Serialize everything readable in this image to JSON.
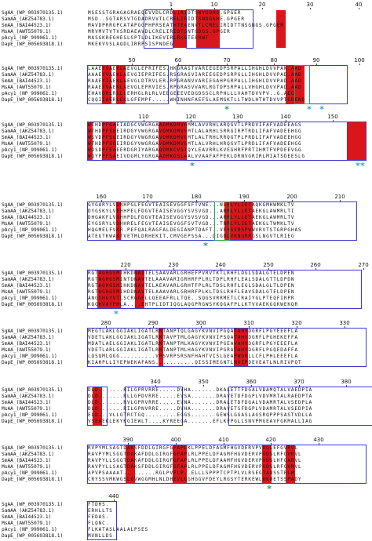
{
  "colors": {
    "identical_bg": "#d9161b",
    "similar_text": "#d9161b",
    "frame": "#3a3acf",
    "green_marker": "#2aa45a",
    "cyan_marker": "#28a9d9",
    "text": "#111111"
  },
  "marker_symbol": "*",
  "blocks": [
    {
      "ruler": [
        "1",
        "10",
        "20",
        "30",
        "40"
      ],
      "rows": [
        {
          "label": "SgAA_(WP_003970135.1)",
          "seq": "MSESSTGRAGAGRAEQEVVDLCRDLIRIDTSNYGDHS.GPGER"
        },
        {
          "label": "SamAA_(AKZ54783.1)",
          "seq": "MSD..SGTARSVTGDADRVVTLCRELIRIDTSNDGSHE.GPGER"
        },
        {
          "label": "SmAA_(BAI44523.1)",
          "seq": "MAVDPRRGPCATAPGGPHPRSEATHTEAENVTLCRELIRIDTTNSGNGS.GPGER"
        },
        {
          "label": "MsAA_(AWT55079.1)",
          "seq": "MRVMVTVTVSRDAEAVDLCRELIRIDTSNTGDGS.GPGER"
        },
        {
          "label": "pAcy1_(NP_999061.1)",
          "seq": "MASGKREGHESLSPTLDLIKEVIRLRKGTEERWT"
        },
        {
          "label": "DapE_(WP_005693818.1)",
          "seq": "MKEKVVSLAQDLIRRPSISPNDEG"
        }
      ]
    },
    {
      "ruler": [
        "50",
        "60",
        "70",
        "80",
        "90",
        "100"
      ],
      "rows": [
        {
          "label": "SgAA_(WP_003970135.1)",
          "seq": "LAAEYVAEKLAEVGLEPRIFES.HKGRASTVARIEGEDPSRPALLIHGHLDVVPAN.AAD"
        },
        {
          "label": "SamAA_(AKZ54783.1)",
          "seq": "AAAEYVAEKLAEVGIEPRIFES.RSGRASVIARIEGEDPSRPGLLIHGHLDVVPAD.AAD"
        },
        {
          "label": "SmAA_(BAI44523.1)",
          "seq": "RAAEYIAEKLAEVGLDTRVLER.RPGRANVVARIEGAHPGRPALLIHGHLDVVPAD.AAD"
        },
        {
          "label": "MsAA_(AWT55079.1)",
          "seq": "RAAEYVAEKLAEVGLEPRVIES.RPGRASVVARLRGTDPSRPALLVHGHLDVVPAD.AAD"
        },
        {
          "label": "pAcy1_(NP_999061.1)",
          "seq": "EHAVQRLRLLLERHGLRLRLVEEGEEEVEDGDSSCLRPHLLLVAHTDVVPV..G.AEG"
        },
        {
          "label": "DapE_(WP_005693818.1)",
          "seq": "CQQIIAERLEKLGFEMPF.....WHINHNFAEFSLAEMGKTLLTWDLHTHTDVVPTGDENQ"
        }
      ]
    },
    {
      "ruler": [
        "110",
        "120",
        "130",
        "140",
        "150"
      ],
      "rows": [
        {
          "label": "SgAA_(WP_003970135.1)",
          "seq": "WTHDPFGAEIADGCVWGRGAADMKDMVGMMLAVVRHLARQGVTLPRDVIFAFVADEEAGS"
        },
        {
          "label": "SamAA_(AKZ54783.1)",
          "seq": "WTHDPFSGEIRDGYVWGRGAVDMKDMVGMTLALARHLSRRGIRPTRDLIFAFVADEEHGG"
        },
        {
          "label": "SmAA_(BAI44523.1)",
          "seq": "WSVDPFSGEIRDGYVWGRGAVDMKDMVGMTLALTRHLRRQGTPLPRDLIFAFVADEEHGG"
        },
        {
          "label": "MsAA_(AWT55079.1)",
          "seq": "WTHDPFSGEIRDGYVWGRGAVDMKDMVGMTLALVRHLHRQGVTLPRDLIFAFVADEEHGG"
        },
        {
          "label": "pAcy1_(NP_999061.1)",
          "seq": "WDSDPFEAEERDGRIYARGAQDMKCVSIQYLEAVRRLKVEGHRFPRTIHMTFVPDEEVGG"
        },
        {
          "label": "DapE_(WP_005693818.1)",
          "seq": "WQYPPFSAEIVDGMLYGRGAADMKGSLAALVVAAFAFPEKLDRNVGRIRLMIATSDEESLG"
        }
      ]
    },
    {
      "ruler": [
        "160",
        "170",
        "180",
        "190",
        "200",
        "210"
      ],
      "rows": [
        {
          "label": "SgAA_(WP_003970135.1)",
          "seq": "GYGARYLVDNHPGLFEGVTEAISEVGGFSFTVNE...NLRLYLIETAQKGMHWMKLTV"
        },
        {
          "label": "SamAA_(AKZ54783.1)",
          "seq": "DYGSKYLVEHHPELFDGVTEAISEVGGYSVSVGD...ARRLYLLETAEKGLAWMRLTI"
        },
        {
          "label": "SmAA_(BAI44523.1)",
          "seq": "DHGAKFLVDHHPDLFDGVTEAISEVGGYSVSVGD...ARRLYLLETAEKGLAWMRLTV"
        },
        {
          "label": "MsAA_(AWT55079.1)",
          "seq": "EYGSRYLVDHHRELFEGVTEAISEVGGFSVTVGD...TRRLYLIETAEKGLTWMKLTV"
        },
        {
          "label": "pAcy1_(NP_999061.1)",
          "seq": "HQGMELFVKR.PEFQALRAGFALDEGIANPTDAFT..VFYSERSPWWVRVTSTGRPGHAS"
        },
        {
          "label": "DapE_(WP_005693818.1)",
          "seq": "ATEGTKWAKTVETMLDRHEKIT.CMVGEPSSA...DIGDLVKNGRRGSLNGVTLRIEG"
        }
      ]
    },
    {
      "ruler": [
        "220",
        "230",
        "240",
        "250",
        "260",
        "270"
      ],
      "rows": [
        {
          "label": "SgAA_(WP_003970135.1)",
          "seq": "RGTAGHGSMIHKDNAITELSAAVARLGRHEFPVRVTKTLRHFLDGLSDALGTELDPEN"
        },
        {
          "label": "SamAA_(AKZ54783.1)",
          "seq": "RGTAGHGSMINTDNAVTELAAAVARIGRHRFPLRLTDPLRHFLEALSDALGTTLDPDN"
        },
        {
          "label": "SmAA_(BAI44523.1)",
          "seq": "RGTAGHGSMIHKDNAVTELAEAVARLGRHTFPLRLTDSLRHFLEGLSDALGLTLDPEN"
        },
        {
          "label": "MsAA_(AWT55079.1)",
          "seq": "RGTAGHGSMIHDDNAVTELAAAVARLGRHRFPLKLTDSLRHFLEAVSDALGTELDPEN"
        },
        {
          "label": "pAcy1_(NP_999061.1)",
          "seq": "ANGSHGYVTLSCRGGFLLQEEAFRLLTQE..SQGSVRRMETLCRAIYGLPTEQFIRPR"
        },
        {
          "label": "DapE_(WP_005693818.1)",
          "seq": "KQGHVAYPHLA....EHTPLIDTIQGLAQGPRGWSYKQGAFPLLKTVVAEKGQKWEKQR"
        }
      ]
    },
    {
      "ruler": [
        "280",
        "290",
        "300",
        "310",
        "320",
        "330"
      ],
      "rows": [
        {
          "label": "SgAA_(WP_003970135.1)",
          "seq": "MEGTLAKLGGIAKLIGATLRNTANPTQLGAGYKVNVIPGQATAHVDGRFLPGYEEEFLA"
        },
        {
          "label": "SamAA_(AKZ54783.1)",
          "seq": "VDETLAKLGGIAKLIGATLRNTAVPTMLGAGYKVNVIPSQATAHVDGRFLPGHEKEFFA"
        },
        {
          "label": "SmAA_(BAI44523.1)",
          "seq": "MDATLAELGGIAKLIGATLRNTANPTMLKAGYKVNVIPGEAVAHVDGRFLPGYEEEFLA"
        },
        {
          "label": "MsAA_(AWT55079.1)",
          "seq": "VDETLARLGGIAKLIGATLRNTANPTMLHAGYKVNVIPGRATAHVDGRFLPGQEDAFFA"
        },
        {
          "label": "pAcy1_(NP_999061.1)",
          "seq": "LQSQMLQGG..........VPSVRPSRSNFHAHTVISLGEAPWDRLLCFLPHLEEEFLA"
        },
        {
          "label": "DapE_(WP_005693818.1)",
          "seq": "KIAHPLLIYEPWEKAFANS...........QISSIMEGNTLNVIPDEVEATLNLRIVPQT"
        }
      ]
    },
    {
      "ruler": [
        "340",
        "350",
        "360",
        "370",
        "380"
      ],
      "rows": [
        {
          "label": "SgAA_(WP_003970135.1)",
          "seq": "DLD.......RILGPRVRRE.....DVHA.......DKALETTFDGALVDAMQTALVAEDPIA"
        },
        {
          "label": "SamAA_(AKZ54783.1)",
          "seq": "DLD.......RLLGPDVRRE.....EVSA.......DRAVETDFDGPLVDVMRTALRAEDPTA"
        },
        {
          "label": "SmAA_(BAI44523.1)",
          "seq": "DLD.......RVLGPRVRRE.....EVNA.......DRALETDFDGALVDAMRTALVSEDPLA"
        },
        {
          "label": "MsAA_(AWT55079.1)",
          "seq": "DLD.......RILGPNVRRE.....DVHA.......DRAVETSFDGPLVDAMRTALVSEDPIA"
        },
        {
          "label": "pAcy1_(NP_999061.1)",
          "seq": "ELD...VLLGTRCTGQ.........EGGS.......GEWSLGGASLAGSRQPPPSASTVDLLA"
        },
        {
          "label": "DapE_(WP_005693818.1)",
          "seq": "VSEAEKLEKYKGIEWLT....KYREEGA.......EFLKFPGLLSNVPMGEAVFGKMALLIAG"
        }
      ]
    },
    {
      "ruler": [
        "390",
        "400",
        "410",
        "420",
        "430"
      ],
      "rows": [
        {
          "label": "SgAA_(WP_003970135.1)",
          "seq": "RVPYMLSAGTDAKSFDDLGIRGFGFAPLKLPPELDFAGMFHGVDERVPVDGLEFGVRVL"
        },
        {
          "label": "SamAA_(AKZ54783.1)",
          "seq": "RAVPYMLSGGTDAKAFDDLGIRGFGFAPLRLPPELDFAGMFHGVDERVPVDSLRFGVRVL"
        },
        {
          "label": "SmAA_(BAI44523.1)",
          "seq": "RAVPYLLSGGTDAKAFDDLGIRGFGFAPLRLPPELDFAAMFHGVDERVPVDSLHFGARVL"
        },
        {
          "label": "MsAA_(AWT55079.1)",
          "seq": "RAVPYLLSAGTDAKSFDDLGIRGFGFAPLRLPPELDFAGMFHGVDERVPVDSLRFGVRVL"
        },
        {
          "label": "pAcy1_(NP_999061.1)",
          "seq": "APVPSAAAAT.........RGLPVPLP..ELLLSPPPTCPTPLVLRSEGTADSSTRLM"
        },
        {
          "label": "DapE_(WP_005693818.1)",
          "seq": "CRYSSVMKWGSLGVWGGMHLNLDHEVLGGHGGVFDEYLRGSYTERKEWLHKDETSSPADY"
        }
      ]
    },
    {
      "ruler": [
        "440"
      ],
      "rows": [
        {
          "label": "SgAA_(WP_003970135.1)",
          "seq": "FTDHS."
        },
        {
          "label": "SamAA_(AKZ54783.1)",
          "seq": "ERHLLTS"
        },
        {
          "label": "SmAA_(BAI44523.1)",
          "seq": "FEDAS."
        },
        {
          "label": "MsAA_(AWT55079.1)",
          "seq": "FLQNC."
        },
        {
          "label": "pAcy1_(NP_999061.1)",
          "seq": "FLKATASLAALALPSES"
        },
        {
          "label": "DapE_(WP_005693818.1)",
          "seq": "MVNLLDS"
        }
      ]
    }
  ]
}
